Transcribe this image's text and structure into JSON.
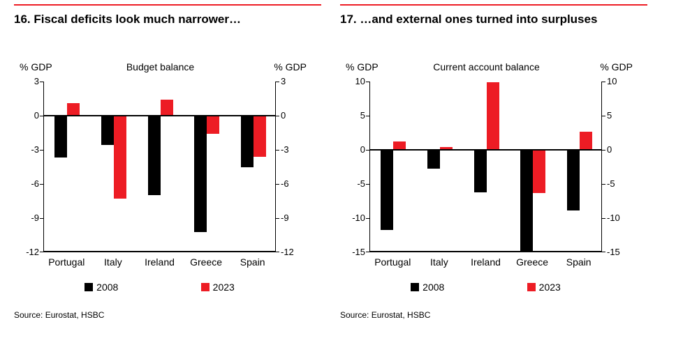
{
  "accent_color": "#ed1c24",
  "series_colors": {
    "y2008": "#000000",
    "y2023": "#ed1c24"
  },
  "chart_data": [
    {
      "type": "bar",
      "heading": "16. Fiscal deficits look much narrower…",
      "title": "Budget balance",
      "left_axis_label": "% GDP",
      "right_axis_label": "% GDP",
      "source": "Source: Eurostat, HSBC",
      "categories": [
        "Portugal",
        "Italy",
        "Ireland",
        "Greece",
        "Spain"
      ],
      "series": [
        {
          "name": "2008",
          "color": "#000000",
          "values": [
            -3.7,
            -2.6,
            -7.0,
            -10.2,
            -4.5
          ]
        },
        {
          "name": "2023",
          "color": "#ed1c24",
          "values": [
            1.1,
            -7.3,
            1.4,
            -1.6,
            -3.6
          ]
        }
      ],
      "ylim": [
        -12,
        3
      ],
      "yticks": [
        3,
        0,
        -3,
        -6,
        -9,
        -12
      ],
      "grid": false,
      "legend_position": "bottom"
    },
    {
      "type": "bar",
      "heading": "17. …and external ones turned into surpluses",
      "title": "Current account balance",
      "left_axis_label": "% GDP",
      "right_axis_label": "% GDP",
      "source": "Source: Eurostat, HSBC",
      "categories": [
        "Portugal",
        "Italy",
        "Ireland",
        "Greece",
        "Spain"
      ],
      "series": [
        {
          "name": "2008",
          "color": "#000000",
          "values": [
            -11.7,
            -2.8,
            -6.2,
            -15.0,
            -8.9
          ]
        },
        {
          "name": "2023",
          "color": "#ed1c24",
          "values": [
            1.2,
            0.4,
            9.9,
            -6.3,
            2.7
          ]
        }
      ],
      "ylim": [
        -15,
        10
      ],
      "yticks": [
        10,
        5,
        0,
        -5,
        -10,
        -15
      ],
      "grid": false,
      "legend_position": "bottom"
    }
  ]
}
